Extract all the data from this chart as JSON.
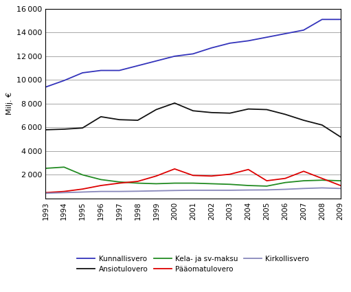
{
  "years": [
    1993,
    1994,
    1995,
    1996,
    1997,
    1998,
    1999,
    2000,
    2001,
    2002,
    2003,
    2004,
    2005,
    2006,
    2007,
    2008,
    2009
  ],
  "Kunnallisvero": [
    9400,
    9950,
    10600,
    10800,
    10800,
    11200,
    11600,
    12000,
    12200,
    12700,
    13100,
    13300,
    13600,
    13900,
    14200,
    15100,
    15100
  ],
  "Ansiotulovero": [
    5800,
    5850,
    5950,
    6900,
    6650,
    6600,
    7500,
    8050,
    7400,
    7250,
    7200,
    7550,
    7500,
    7100,
    6600,
    6200,
    5200
  ],
  "Kela_ja_sv_maksu": [
    2550,
    2650,
    2000,
    1600,
    1400,
    1300,
    1250,
    1300,
    1300,
    1250,
    1200,
    1100,
    1050,
    1350,
    1500,
    1550,
    1500
  ],
  "Paaomatulovero": [
    500,
    600,
    800,
    1100,
    1300,
    1450,
    1900,
    2500,
    1950,
    1900,
    2050,
    2450,
    1500,
    1700,
    2300,
    1700,
    1100
  ],
  "Kirkollisvero": [
    450,
    500,
    550,
    600,
    600,
    620,
    650,
    680,
    700,
    700,
    700,
    720,
    730,
    780,
    850,
    900,
    850
  ],
  "colors": {
    "Kunnallisvero": "#3333bb",
    "Ansiotulovero": "#111111",
    "Kela_ja_sv_maksu": "#228B22",
    "Paaomatulovero": "#dd0000",
    "Kirkollisvero": "#8888bb"
  },
  "legend_labels": {
    "Kunnallisvero": "Kunnallisvero",
    "Ansiotulovero": "Ansiotulovero",
    "Kela_ja_sv_maksu": "Kela- ja sv-maksu",
    "Paaomatulovero": "Pääomatulovero",
    "Kirkollisvero": "Kirkollisvero"
  },
  "ylabel": "Milj. €",
  "ylim": [
    0,
    16000
  ],
  "ytick_values": [
    0,
    2000,
    4000,
    6000,
    8000,
    10000,
    12000,
    14000,
    16000
  ],
  "ytick_labels": [
    "",
    "2 000",
    "4 000",
    "6 000",
    "8 000",
    "10 000",
    "12 000",
    "14 000",
    "16 000"
  ],
  "background_color": "#ffffff",
  "grid_color": "#999999",
  "border_color": "#000000"
}
